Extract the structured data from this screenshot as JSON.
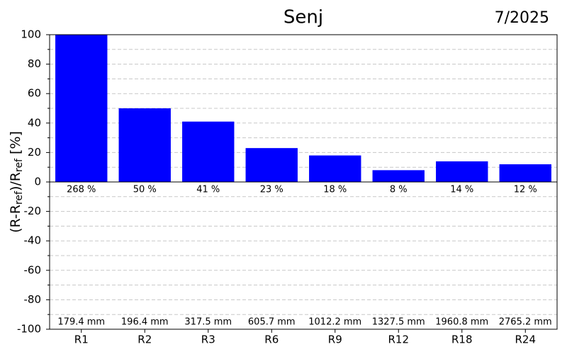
{
  "chart_data": {
    "type": "bar",
    "title": "Senj",
    "date": "7/2025",
    "ylabel": [
      "(R-R",
      "ref",
      ")/R",
      "ref",
      " [%]"
    ],
    "categories": [
      "R1",
      "R2",
      "R3",
      "R6",
      "R9",
      "R12",
      "R18",
      "R24"
    ],
    "values": [
      268,
      50,
      41,
      23,
      18,
      8,
      14,
      12
    ],
    "value_labels": [
      "268 %",
      "50 %",
      "41 %",
      "23 %",
      "18 %",
      "8 %",
      "14 %",
      "12 %"
    ],
    "reference_labels": [
      "179.4 mm",
      "196.4 mm",
      "317.5 mm",
      "605.7 mm",
      "1012.2 mm",
      "1327.5 mm",
      "1960.8 mm",
      "2765.2 mm"
    ],
    "color": "#0000ff",
    "ylim": [
      -100,
      100
    ],
    "yticks": [
      -100,
      -80,
      -60,
      -40,
      -20,
      0,
      20,
      40,
      60,
      80,
      100
    ],
    "grid": true
  }
}
